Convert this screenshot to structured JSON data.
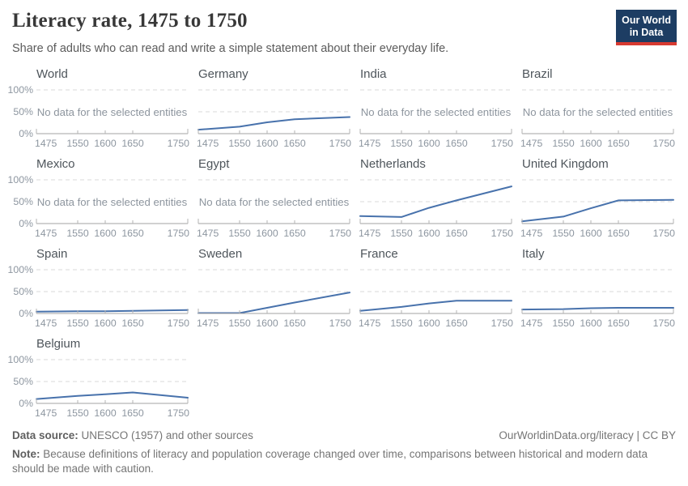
{
  "header": {
    "title": "Literacy rate, 1475 to 1750",
    "subtitle": "Share of adults who can read and write a simple statement about their everyday life.",
    "logo": {
      "line1": "Our World",
      "line2": "in Data",
      "bg": "#1d3d63",
      "accent": "#d73a31"
    }
  },
  "colors": {
    "line": "#4872ac",
    "grid": "#dadada",
    "axis": "#a3a3a3",
    "tick": "#b3b3b3",
    "tick_label": "#8d96a0",
    "no_data": "#8d959e"
  },
  "chart_data": {
    "type": "line",
    "title": "Literacy rate, 1475 to 1750",
    "subtitle": "Share of adults who can read and write a simple statement about their everyday life.",
    "ylabel": "Literacy rate",
    "ylim": [
      0,
      100
    ],
    "grid": "dashed horizontal at 50% and 100%",
    "x": [
      1475,
      1550,
      1600,
      1650,
      1750
    ],
    "x_ticks": [
      "1475",
      "1550",
      "1600",
      "1650",
      "1750"
    ],
    "y_ticks": [
      "0%",
      "50%",
      "100%"
    ],
    "no_data_message": "No data for the selected entities",
    "facets": [
      {
        "name": "World",
        "values": null
      },
      {
        "name": "Germany",
        "values": [
          9,
          16,
          26,
          33,
          38
        ]
      },
      {
        "name": "India",
        "values": null
      },
      {
        "name": "Brazil",
        "values": null
      },
      {
        "name": "Mexico",
        "values": null
      },
      {
        "name": "Egypt",
        "values": null
      },
      {
        "name": "Netherlands",
        "values": [
          17,
          15,
          36,
          53,
          85
        ]
      },
      {
        "name": "United Kingdom",
        "values": [
          5,
          16,
          35,
          53,
          54
        ]
      },
      {
        "name": "Spain",
        "values": [
          4,
          5,
          5,
          6,
          8
        ]
      },
      {
        "name": "Sweden",
        "values": [
          1,
          1,
          13,
          25,
          48
        ]
      },
      {
        "name": "France",
        "values": [
          6,
          15,
          23,
          29,
          29
        ]
      },
      {
        "name": "Italy",
        "values": [
          9,
          10,
          12,
          13,
          13
        ]
      },
      {
        "name": "Belgium",
        "values": [
          10,
          17,
          21,
          25,
          13
        ]
      }
    ]
  },
  "footer": {
    "source_label": "Data source:",
    "source_text": " UNESCO (1957) and other sources",
    "link": "OurWorldinData.org/literacy | CC BY",
    "note_label": "Note:",
    "note_text": " Because definitions of literacy and population coverage changed over time, comparisons between historical and modern data should be made with caution."
  }
}
